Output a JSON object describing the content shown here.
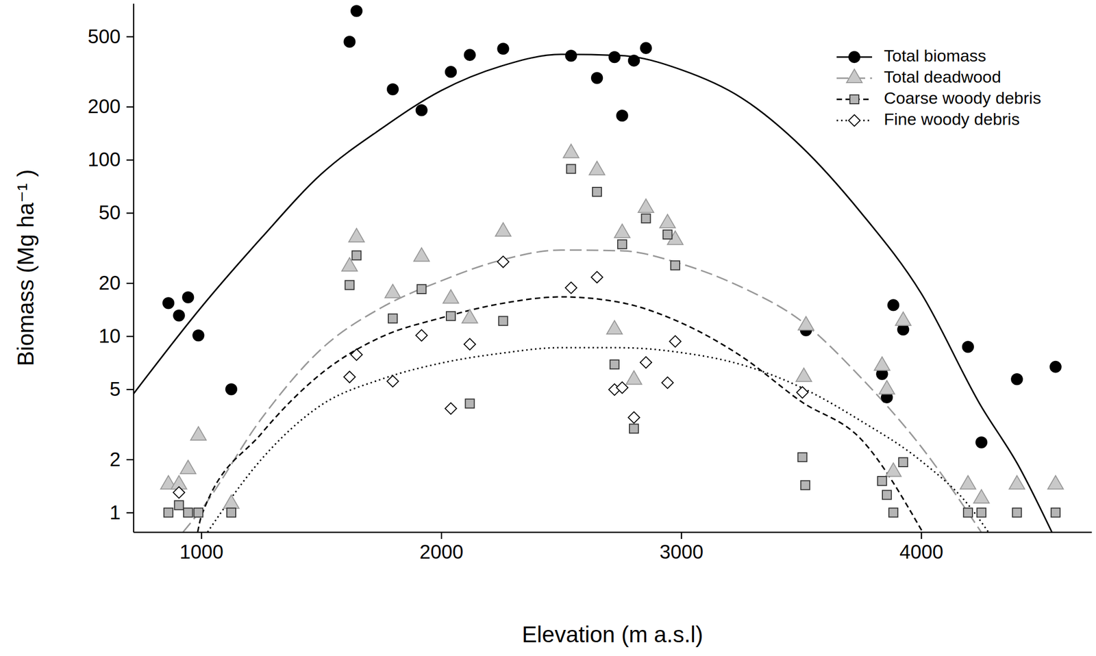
{
  "chart_data": {
    "type": "scatter",
    "x_label": "Elevation (m a.s.l)",
    "y_label": "Biomass (Mg ha⁻¹ )",
    "log": "y",
    "grid": false,
    "legend": "top-right",
    "xlim": [
      717,
      4710
    ],
    "ylim": [
      0.775,
      770
    ],
    "xticks": [
      1000,
      2000,
      3000,
      4000
    ],
    "yticks": [
      1,
      2,
      5,
      10,
      20,
      50,
      100,
      200,
      500
    ],
    "series": [
      {
        "name": "Total biomass",
        "color": "#000000",
        "marker": "circle",
        "line_style": "solid",
        "x": [
          863,
          907,
          945,
          988,
          1125,
          1618,
          1647,
          1798,
          1918,
          2040,
          2119,
          2258,
          2541,
          2649,
          2722,
          2754,
          2803,
          2853,
          3520,
          3837,
          3857,
          3884,
          3925,
          4195,
          4251,
          4399,
          4560
        ],
        "values": [
          15.4,
          13.1,
          16.6,
          10.1,
          5.0,
          467,
          698,
          251,
          191,
          315,
          393,
          426,
          389,
          291,
          382,
          178,
          365,
          430,
          10.8,
          6.1,
          4.5,
          15.0,
          10.9,
          8.7,
          2.5,
          5.7,
          6.7
        ],
        "fit": {
          "x": [
            717,
            1000,
            1250,
            1500,
            1750,
            2000,
            2250,
            2500,
            2750,
            3000,
            3250,
            3500,
            3750,
            4000,
            4250,
            4400,
            4560
          ],
          "values": [
            4.7,
            14.6,
            36,
            83,
            150,
            247,
            340,
            396,
            390,
            324,
            225,
            119,
            50,
            17.5,
            4.0,
            1.9,
            0.7
          ]
        }
      },
      {
        "name": "Total deadwood",
        "color": "#999999",
        "marker": "triangle",
        "line_style": "long-dash",
        "x": [
          863,
          907,
          945,
          988,
          1125,
          1618,
          1647,
          1798,
          1918,
          2040,
          2119,
          2258,
          2541,
          2649,
          2722,
          2754,
          2803,
          2853,
          2943,
          2975,
          3520,
          3511,
          3837,
          3857,
          3884,
          3925,
          4195,
          4251,
          4399,
          4560
        ],
        "values": [
          1.44,
          1.44,
          1.76,
          2.73,
          1.12,
          24.8,
          36.3,
          17.5,
          28.2,
          16.3,
          12.6,
          39.1,
          109,
          87.2,
          10.9,
          38.4,
          5.66,
          53.3,
          43.6,
          35.1,
          11.5,
          5.87,
          6.79,
          4.98,
          1.7,
          12.2,
          1.44,
          1.2,
          1.44,
          1.44
        ],
        "fit": {
          "x": [
            924,
            1000,
            1250,
            1500,
            1750,
            2000,
            2250,
            2500,
            2750,
            3000,
            3250,
            3500,
            3750,
            4000,
            4250
          ],
          "values": [
            0.775,
            1.04,
            3.4,
            8.45,
            14.5,
            20.6,
            27,
            30.8,
            30.5,
            25.7,
            19,
            12.2,
            5.8,
            2.36,
            0.775
          ]
        }
      },
      {
        "name": "Coarse woody debris",
        "color": "#000000",
        "marker": "square",
        "line_style": "dashed",
        "x": [
          863,
          907,
          945,
          988,
          1125,
          1618,
          1647,
          1798,
          1918,
          2040,
          2119,
          2258,
          2541,
          2649,
          2722,
          2754,
          2803,
          2853,
          2943,
          2975,
          3505,
          3517,
          3837,
          3857,
          3884,
          3925,
          4195,
          4251,
          4399,
          4560
        ],
        "values": [
          1.0,
          1.1,
          1.0,
          1.0,
          1.0,
          19.5,
          28.7,
          12.6,
          18.5,
          13.0,
          4.15,
          12.2,
          88.8,
          65.8,
          6.91,
          33.2,
          2.99,
          46.5,
          37.7,
          25.2,
          2.06,
          1.43,
          1.51,
          1.26,
          1.0,
          1.93,
          1.0,
          1.0,
          1.0,
          1.0
        ],
        "fit": {
          "x": [
            985,
            1000,
            1250,
            1500,
            1750,
            2000,
            2250,
            2500,
            2750,
            3000,
            3250,
            3500,
            3750,
            4006
          ],
          "values": [
            0.775,
            0.95,
            2.8,
            6.14,
            9.9,
            12.7,
            15.3,
            16.7,
            15.5,
            11.9,
            7.7,
            4.26,
            2.6,
            0.775
          ]
        }
      },
      {
        "name": "Fine woody debris",
        "color": "#000000",
        "marker": "diamond",
        "line_style": "dotted",
        "x": [
          907,
          1618,
          1647,
          1798,
          1918,
          2040,
          2119,
          2258,
          2541,
          2649,
          2722,
          2754,
          2803,
          2853,
          2943,
          2975,
          3505
        ],
        "values": [
          1.3,
          5.87,
          7.85,
          5.55,
          10.1,
          3.89,
          9.0,
          26.4,
          18.8,
          21.6,
          4.98,
          5.11,
          3.46,
          7.1,
          5.45,
          9.34,
          4.8
        ],
        "fit": {
          "x": [
            1026,
            1250,
            1500,
            1750,
            2000,
            2250,
            2500,
            2750,
            3000,
            3250,
            3500,
            3750,
            4000,
            4200,
            4280
          ],
          "values": [
            0.775,
            2.0,
            4.07,
            5.7,
            7.04,
            8.0,
            8.61,
            8.6,
            8.07,
            6.9,
            5.12,
            3.3,
            1.96,
            1.09,
            0.775
          ]
        }
      }
    ]
  }
}
